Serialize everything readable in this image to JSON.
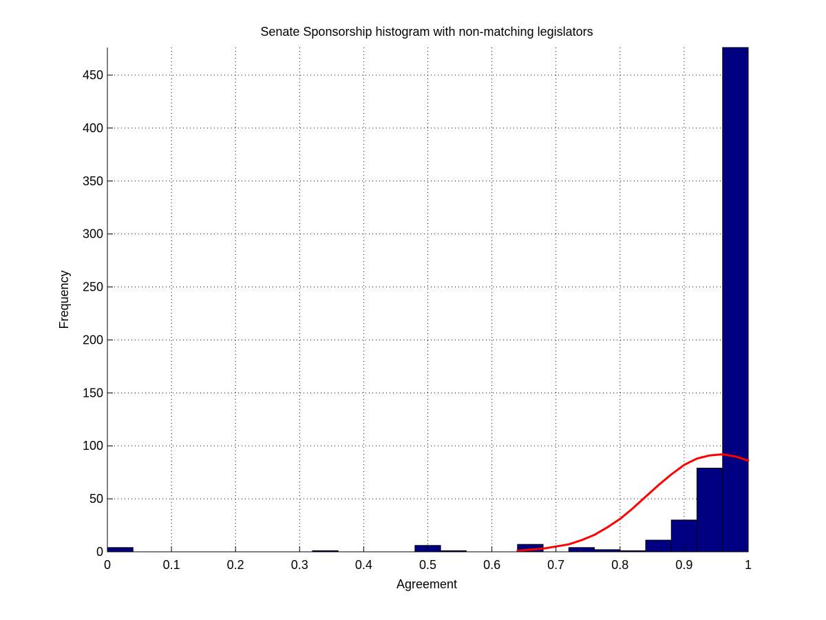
{
  "chart_data": {
    "type": "bar",
    "title": "Senate Sponsorship histogram with non-matching legislators",
    "xlabel": "Agreement",
    "ylabel": "Frequency",
    "xlim": [
      0,
      1
    ],
    "ylim": [
      0,
      476
    ],
    "grid": true,
    "x_ticks": [
      "0",
      "0.1",
      "0.2",
      "0.3",
      "0.4",
      "0.5",
      "0.6",
      "0.7",
      "0.8",
      "0.9",
      "1"
    ],
    "y_ticks": [
      "0",
      "50",
      "100",
      "150",
      "200",
      "250",
      "300",
      "350",
      "400",
      "450"
    ],
    "bin_width": 0.04,
    "bins": [
      0.0,
      0.04,
      0.08,
      0.12,
      0.16,
      0.2,
      0.24,
      0.28,
      0.32,
      0.36,
      0.4,
      0.44,
      0.48,
      0.52,
      0.56,
      0.6,
      0.64,
      0.68,
      0.72,
      0.76,
      0.8,
      0.84,
      0.88,
      0.92,
      0.96
    ],
    "values": [
      4,
      0,
      0,
      0,
      0,
      0,
      0,
      0,
      1,
      0,
      0,
      0,
      6,
      1,
      0,
      0,
      7,
      0,
      4,
      2,
      1,
      11,
      30,
      79,
      476
    ],
    "bar_color": "#000080",
    "fit_curve": {
      "color": "#ff0000",
      "x": [
        0.64,
        0.66,
        0.68,
        0.7,
        0.72,
        0.74,
        0.76,
        0.78,
        0.8,
        0.82,
        0.84,
        0.86,
        0.88,
        0.9,
        0.92,
        0.94,
        0.96,
        0.98,
        1.0
      ],
      "y": [
        1,
        2,
        3,
        5,
        7,
        11,
        16,
        23,
        31,
        41,
        52,
        63,
        73,
        82,
        88,
        91,
        92,
        90,
        86
      ]
    }
  }
}
